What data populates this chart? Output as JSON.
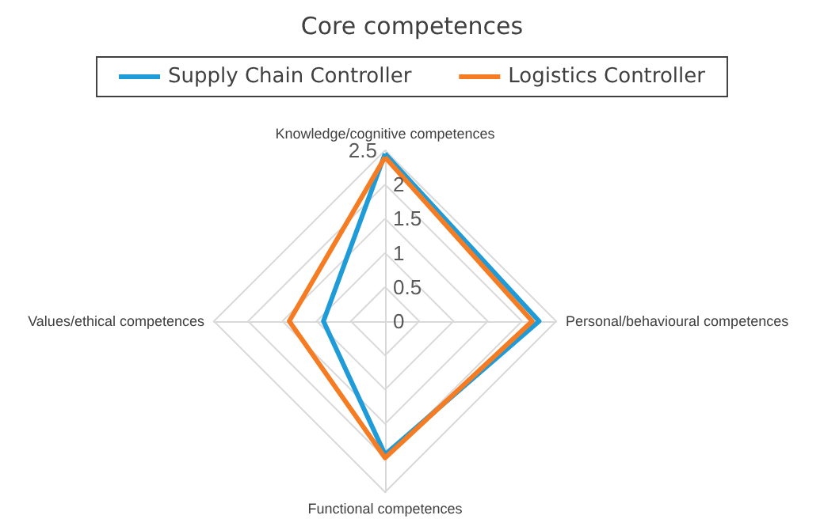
{
  "chart_data": {
    "type": "radar",
    "title": "Core competences",
    "categories": [
      "Knowledge/cognitive competences",
      "Personal/behavioural competences",
      "Functional competences",
      "Values/ethical competences"
    ],
    "series": [
      {
        "name": "Supply Chain Controller",
        "color": "#1f9bd7",
        "values": [
          2.45,
          2.25,
          1.95,
          0.9
        ]
      },
      {
        "name": "Logistics Controller",
        "color": "#f57c22",
        "values": [
          2.4,
          2.15,
          2.0,
          1.4
        ]
      }
    ],
    "ylim": [
      0,
      2.5
    ],
    "yticks": [
      0,
      0.5,
      1,
      1.5,
      2,
      2.5
    ],
    "grid": true,
    "legend": "top"
  }
}
